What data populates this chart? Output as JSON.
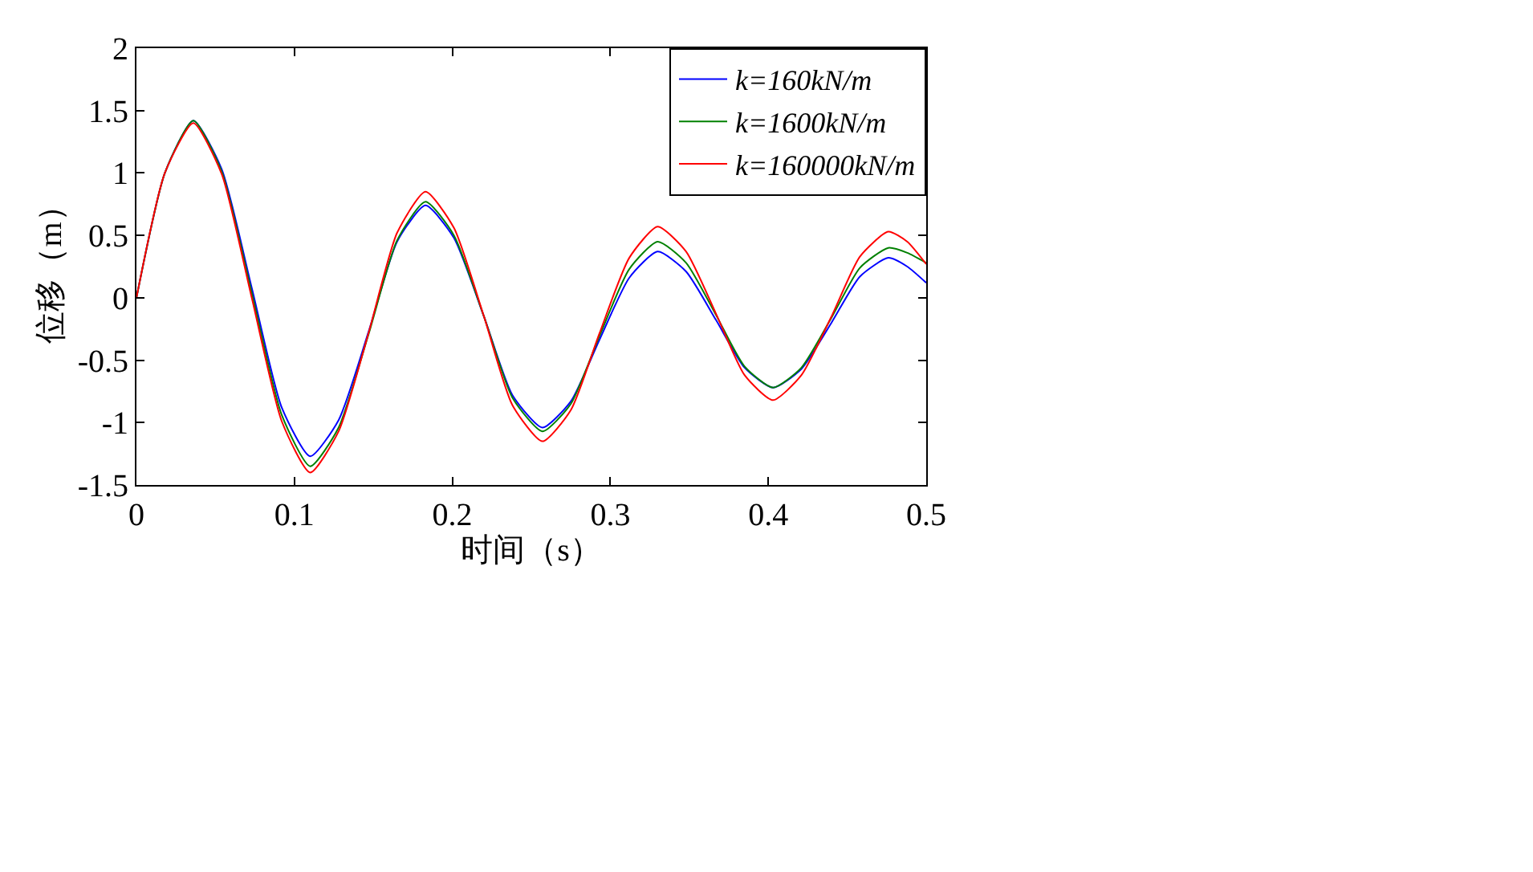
{
  "chart_data": {
    "type": "line",
    "xlabel": "时间（s）",
    "ylabel": "位移（m）",
    "x": [
      0,
      0.018,
      0.036,
      0.054,
      0.073,
      0.092,
      0.11,
      0.128,
      0.147,
      0.165,
      0.183,
      0.201,
      0.22,
      0.238,
      0.257,
      0.275,
      0.293,
      0.312,
      0.33,
      0.348,
      0.367,
      0.385,
      0.403,
      0.421,
      0.44,
      0.458,
      0.476,
      0.488,
      0.5
    ],
    "series": [
      {
        "name": "k=160kN/m",
        "color": "#0000ff",
        "values": [
          0,
          1.0,
          1.42,
          1.03,
          0.08,
          -0.88,
          -1.27,
          -0.98,
          -0.27,
          0.45,
          0.74,
          0.48,
          -0.15,
          -0.78,
          -1.04,
          -0.83,
          -0.34,
          0.16,
          0.37,
          0.21,
          -0.18,
          -0.56,
          -0.72,
          -0.57,
          -0.2,
          0.17,
          0.32,
          0.25,
          0.12
        ]
      },
      {
        "name": "k=1600kN/m",
        "color": "#008000",
        "values": [
          0,
          1.0,
          1.42,
          1.01,
          0.04,
          -0.94,
          -1.35,
          -1.04,
          -0.29,
          0.46,
          0.77,
          0.5,
          -0.15,
          -0.8,
          -1.07,
          -0.85,
          -0.31,
          0.23,
          0.45,
          0.28,
          -0.14,
          -0.55,
          -0.72,
          -0.56,
          -0.16,
          0.24,
          0.4,
          0.36,
          0.28
        ]
      },
      {
        "name": "k=160000kN/m",
        "color": "#ff0000",
        "values": [
          0,
          1.0,
          1.4,
          0.99,
          0,
          -0.99,
          -1.4,
          -1.07,
          -0.28,
          0.52,
          0.85,
          0.56,
          -0.15,
          -0.86,
          -1.15,
          -0.9,
          -0.29,
          0.32,
          0.57,
          0.37,
          -0.13,
          -0.62,
          -0.82,
          -0.62,
          -0.15,
          0.33,
          0.53,
          0.45,
          0.27
        ]
      }
    ],
    "xlim": [
      0,
      0.5
    ],
    "xticks": [
      0,
      0.1,
      0.2,
      0.3,
      0.4,
      0.5
    ],
    "ylim": [
      -1.5,
      2
    ],
    "yticks": [
      -1.5,
      -1,
      -0.5,
      0,
      0.5,
      1,
      1.5,
      2
    ],
    "legend": "top right",
    "line_style": "solid",
    "marker": "none"
  }
}
